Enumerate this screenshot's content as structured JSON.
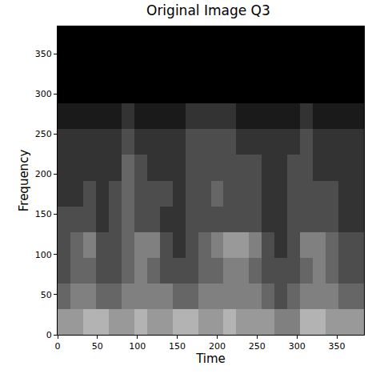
{
  "chart_data": {
    "type": "heatmap",
    "title": "Original Image Q3",
    "x_label": "Time",
    "y_label": "Frequency",
    "xlim": [
      0,
      384
    ],
    "ylim": [
      0,
      384
    ],
    "xticks": [
      0,
      50,
      100,
      150,
      200,
      250,
      300,
      350
    ],
    "yticks": [
      0,
      50,
      100,
      150,
      200,
      250,
      300,
      350
    ],
    "grid": false,
    "color": "gray",
    "color_range": [
      0,
      10
    ],
    "x_edges": [
      0,
      16,
      32,
      48,
      64,
      80,
      96,
      112,
      128,
      144,
      160,
      176,
      192,
      208,
      224,
      240,
      256,
      272,
      288,
      304,
      320,
      336,
      352,
      368,
      384
    ],
    "y_edges": [
      0,
      32,
      64,
      96,
      128,
      160,
      192,
      224,
      256,
      288,
      320,
      352,
      384
    ],
    "cells": [
      [
        6,
        6,
        7,
        7,
        6,
        6,
        7,
        6,
        6,
        7,
        7,
        6,
        6,
        7,
        6,
        6,
        6,
        5,
        5,
        7,
        7,
        6,
        6,
        6
      ],
      [
        4,
        5,
        5,
        4,
        4,
        5,
        5,
        5,
        5,
        4,
        4,
        5,
        5,
        5,
        5,
        5,
        4,
        3,
        4,
        5,
        5,
        5,
        4,
        4
      ],
      [
        3,
        4,
        4,
        3,
        3,
        4,
        5,
        4,
        3,
        3,
        3,
        4,
        4,
        5,
        5,
        4,
        3,
        3,
        3,
        4,
        5,
        4,
        3,
        3
      ],
      [
        3,
        4,
        5,
        3,
        3,
        4,
        5,
        5,
        3,
        2,
        3,
        4,
        5,
        6,
        6,
        5,
        3,
        2,
        3,
        5,
        5,
        4,
        3,
        3
      ],
      [
        3,
        3,
        3,
        2,
        3,
        4,
        3,
        3,
        2,
        2,
        3,
        3,
        3,
        3,
        3,
        3,
        2,
        2,
        3,
        3,
        3,
        3,
        2,
        2
      ],
      [
        2,
        2,
        3,
        2,
        3,
        4,
        3,
        3,
        3,
        2,
        3,
        3,
        4,
        3,
        3,
        3,
        2,
        2,
        3,
        3,
        3,
        3,
        2,
        2
      ],
      [
        2,
        2,
        2,
        2,
        2,
        4,
        3,
        2,
        2,
        2,
        3,
        3,
        3,
        3,
        3,
        3,
        2,
        2,
        3,
        3,
        2,
        2,
        2,
        2
      ],
      [
        2,
        2,
        2,
        2,
        2,
        3,
        2,
        2,
        2,
        2,
        3,
        3,
        3,
        3,
        2,
        2,
        2,
        2,
        2,
        3,
        2,
        2,
        2,
        2
      ],
      [
        1,
        1,
        1,
        1,
        1,
        2,
        1,
        1,
        1,
        1,
        2,
        2,
        2,
        2,
        1,
        1,
        1,
        1,
        1,
        2,
        1,
        1,
        1,
        1
      ],
      [
        0,
        0,
        0,
        0,
        0,
        0,
        0,
        0,
        0,
        0,
        0,
        0,
        0,
        0,
        0,
        0,
        0,
        0,
        0,
        0,
        0,
        0,
        0,
        0
      ],
      [
        0,
        0,
        0,
        0,
        0,
        0,
        0,
        0,
        0,
        0,
        0,
        0,
        0,
        0,
        0,
        0,
        0,
        0,
        0,
        0,
        0,
        0,
        0,
        0
      ],
      [
        0,
        0,
        0,
        0,
        0,
        0,
        0,
        0,
        0,
        0,
        0,
        0,
        0,
        0,
        0,
        0,
        0,
        0,
        0,
        0,
        0,
        0,
        0,
        0
      ]
    ]
  }
}
